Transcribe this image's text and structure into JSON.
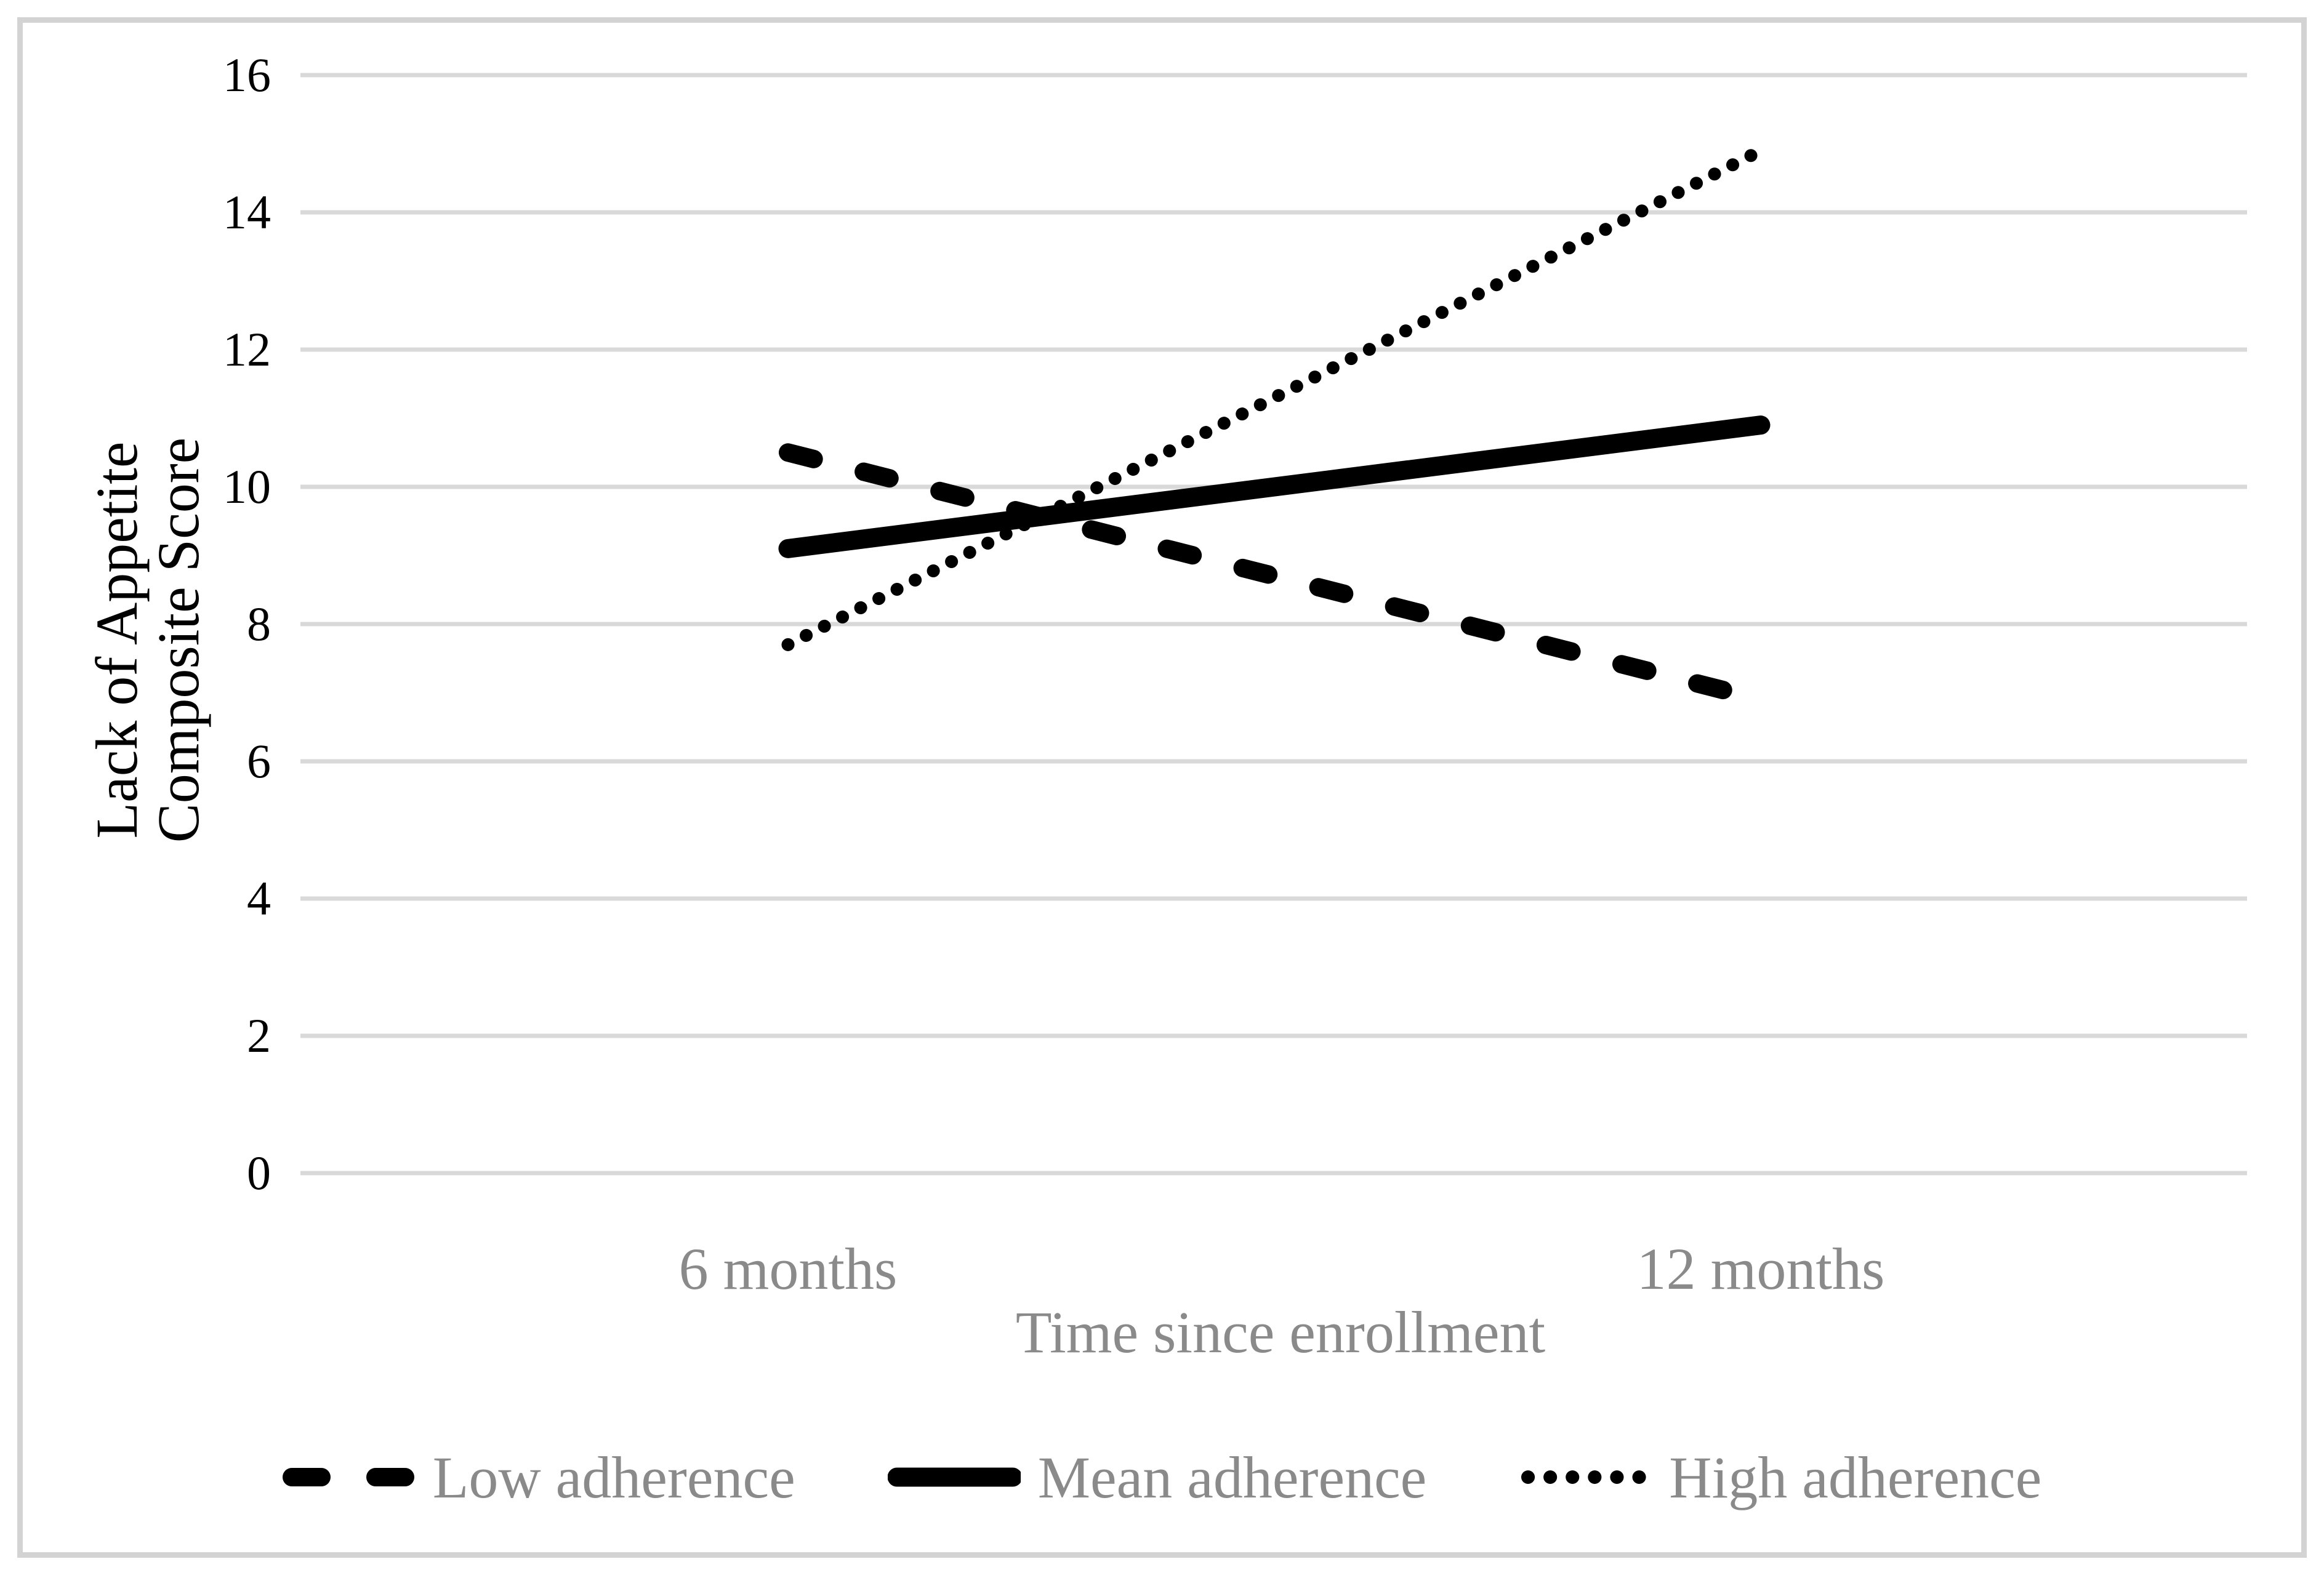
{
  "chart_data": {
    "type": "line",
    "title": "",
    "categories": [
      "6 months",
      "12 months"
    ],
    "series": [
      {
        "name": "Low adherence",
        "style": "dashed",
        "color": "#000000",
        "values": [
          10.5,
          6.9
        ]
      },
      {
        "name": "Mean adherence",
        "style": "solid",
        "color": "#000000",
        "values": [
          9.1,
          10.9
        ]
      },
      {
        "name": "High adherence",
        "style": "dotted",
        "color": "#000000",
        "values": [
          7.7,
          14.9
        ]
      }
    ],
    "xlabel": "Time since enrollment",
    "ylabel": "Lack of Appetite Composite Score",
    "ylabel_lines": [
      "Lack of Appetite",
      "Composite Score"
    ],
    "ylim": [
      0,
      16
    ],
    "ytick_step": 2,
    "yticks": [
      0,
      2,
      4,
      6,
      8,
      10,
      12,
      14,
      16
    ],
    "grid": true,
    "legend_position": "bottom",
    "colors": {
      "line": "#000000",
      "gridline": "#d9d9d9",
      "gray_text": "#8a8a8a",
      "black_text": "#000000",
      "figure_border": "#d3d3d3"
    }
  }
}
